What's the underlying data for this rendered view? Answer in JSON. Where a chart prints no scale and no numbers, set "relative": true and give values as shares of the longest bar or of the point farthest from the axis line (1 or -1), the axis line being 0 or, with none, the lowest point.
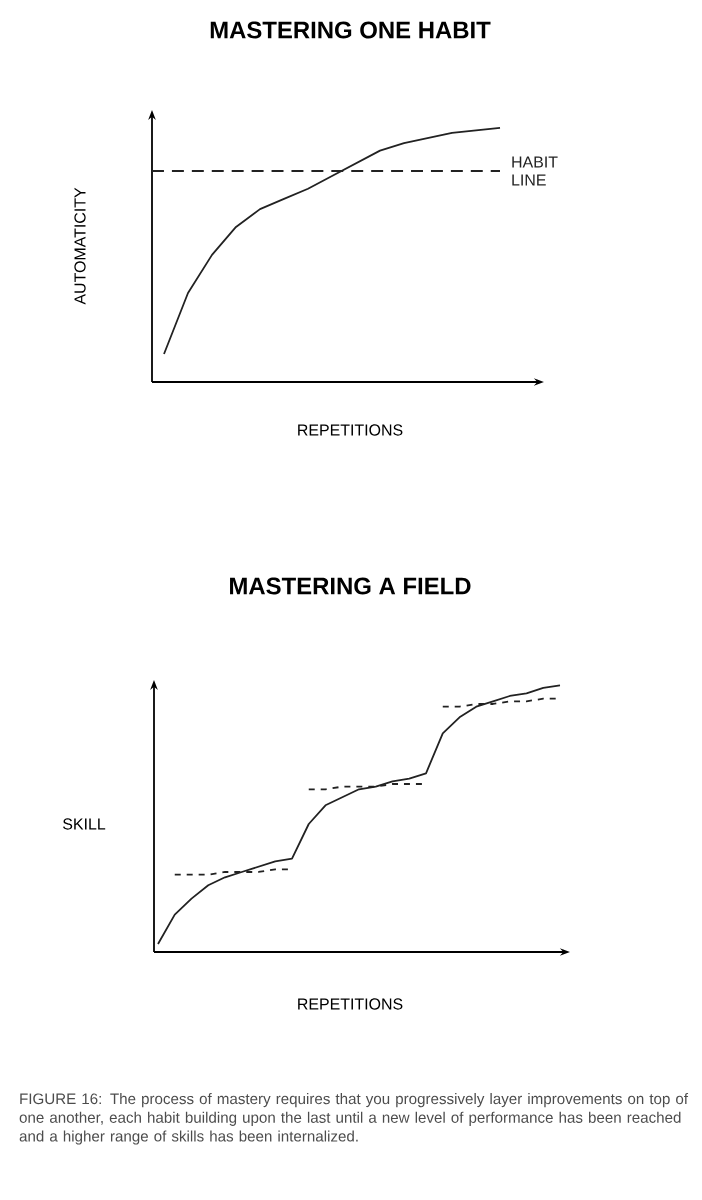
{
  "chart_data": [
    {
      "type": "line",
      "title": "MASTERING ONE HABIT",
      "xlabel": "REPETITIONS",
      "ylabel": "AUTOMATICITY",
      "relative": true,
      "categories": [
        null,
        null,
        null,
        null,
        null,
        null,
        null,
        null,
        null,
        null,
        null,
        null,
        null,
        null,
        null
      ],
      "series": [
        {
          "color": "#222222",
          "line_style": "solid",
          "values": [
            0.11,
            0.35,
            0.5,
            0.61,
            0.68,
            0.72,
            0.76,
            0.81,
            0.86,
            0.91,
            0.94,
            0.96,
            0.98,
            0.99,
            1
          ]
        }
      ],
      "ref_lines": [
        {
          "axis": "y",
          "value": 0.83,
          "label": "HABIT LINE",
          "color": "#222222",
          "line_style": "dashed"
        }
      ]
    },
    {
      "type": "line",
      "title": "MASTERING A FIELD",
      "xlabel": "REPETITIONS",
      "ylabel": "SKILL",
      "relative": true,
      "categories": [
        null,
        null,
        null,
        null,
        null,
        null,
        null,
        null,
        null,
        null,
        null,
        null,
        null,
        null,
        null,
        null,
        null,
        null,
        null,
        null,
        null,
        null,
        null,
        null,
        null
      ],
      "series": [
        {
          "color": "#222222",
          "line_style": "solid",
          "values": [
            0.03,
            0.14,
            0.2,
            0.25,
            0.28,
            0.3,
            0.32,
            0.34,
            0.35,
            0.48,
            0.55,
            0.58,
            0.61,
            0.62,
            0.64,
            0.65,
            0.67,
            0.82,
            0.88,
            0.92,
            0.94,
            0.96,
            0.97,
            0.99,
            1
          ]
        },
        {
          "color": "#222222",
          "line_style": "dashed",
          "values": [
            null,
            0.29,
            0.29,
            0.29,
            0.3,
            0.3,
            0.3,
            0.31,
            0.31,
            null,
            null,
            null,
            null,
            null,
            null,
            null,
            null,
            null,
            null,
            null,
            null,
            null,
            null,
            null,
            null
          ]
        },
        {
          "color": "#222222",
          "line_style": "dashed",
          "values": [
            null,
            null,
            null,
            null,
            null,
            null,
            null,
            null,
            null,
            0.61,
            0.61,
            0.62,
            0.62,
            0.62,
            0.63,
            0.63,
            0.63,
            null,
            null,
            null,
            null,
            null,
            null,
            null,
            null
          ]
        },
        {
          "color": "#222222",
          "line_style": "dashed",
          "values": [
            null,
            null,
            null,
            null,
            null,
            null,
            null,
            null,
            null,
            null,
            null,
            null,
            null,
            null,
            null,
            null,
            null,
            0.92,
            0.92,
            0.93,
            0.93,
            0.94,
            0.94,
            0.95,
            0.95
          ]
        }
      ],
      "annotations": [
        "FIGURE 16: The process of mastery requires that you progressively layer improvements on top of one another, each habit building upon the last until a new level of performance has been reached and a higher range of skills has been internalized."
      ]
    }
  ]
}
